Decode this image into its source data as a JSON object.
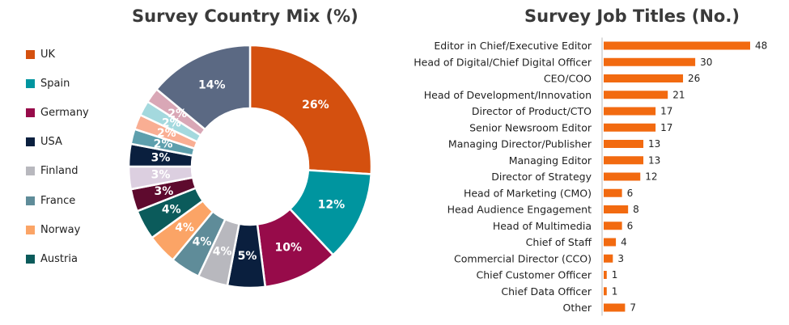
{
  "chart_data": [
    {
      "type": "pie",
      "variant": "donut",
      "title": "Survey Country Mix (%)",
      "legend_position": "left",
      "slices": [
        {
          "name": "UK",
          "value": 26,
          "label": "26%",
          "color": "#D4500F"
        },
        {
          "name": "Spain",
          "value": 12,
          "label": "12%",
          "color": "#00959F"
        },
        {
          "name": "Germany",
          "value": 10,
          "label": "10%",
          "color": "#970B4A"
        },
        {
          "name": "USA",
          "value": 5,
          "label": "5%",
          "color": "#0A1F3E"
        },
        {
          "name": "Finland",
          "value": 4,
          "label": "4%",
          "color": "#B8B8BE"
        },
        {
          "name": "France",
          "value": 4,
          "label": "4%",
          "color": "#5F8C99"
        },
        {
          "name": "Norway",
          "value": 4,
          "label": "4%",
          "color": "#FBA466"
        },
        {
          "name": "Austria",
          "value": 4,
          "label": "4%",
          "color": "#0B5B5B"
        },
        {
          "name": "",
          "value": 3,
          "label": "3%",
          "color": "#5E0A2E"
        },
        {
          "name": "",
          "value": 3,
          "label": "3%",
          "color": "#DCCFE0"
        },
        {
          "name": "",
          "value": 3,
          "label": "3%",
          "color": "#0A1F3E"
        },
        {
          "name": "",
          "value": 2,
          "label": "2%",
          "color": "#5E9FAD"
        },
        {
          "name": "",
          "value": 2,
          "label": "2%",
          "color": "#F9AE93"
        },
        {
          "name": "",
          "value": 2,
          "label": "2%",
          "color": "#A4D9DE"
        },
        {
          "name": "",
          "value": 2,
          "label": "2%",
          "color": "#D9A7B6"
        },
        {
          "name": "",
          "value": 14,
          "label": "14%",
          "color": "#5B6983"
        }
      ]
    },
    {
      "type": "bar",
      "orientation": "horizontal",
      "title": "Survey Job Titles (No.)",
      "bar_color": "#F26A10",
      "xlim": [
        0,
        48
      ],
      "categories": [
        "Editor in Chief/Executive Editor",
        "Head of Digital/Chief Digital Officer",
        "CEO/COO",
        "Head of Development/Innovation",
        "Director of Product/CTO",
        "Senior Newsroom Editor",
        "Managing Director/Publisher",
        "Managing Editor",
        "Director of Strategy",
        "Head of Marketing (CMO)",
        "Head Audience Engagement",
        "Head of Multimedia",
        "Chief of Staff",
        "Commercial Director (CCO)",
        "Chief Customer Officer",
        "Chief Data Officer",
        "Other"
      ],
      "values": [
        48,
        30,
        26,
        21,
        17,
        17,
        13,
        13,
        12,
        6,
        8,
        6,
        4,
        3,
        1,
        1,
        7
      ]
    }
  ]
}
